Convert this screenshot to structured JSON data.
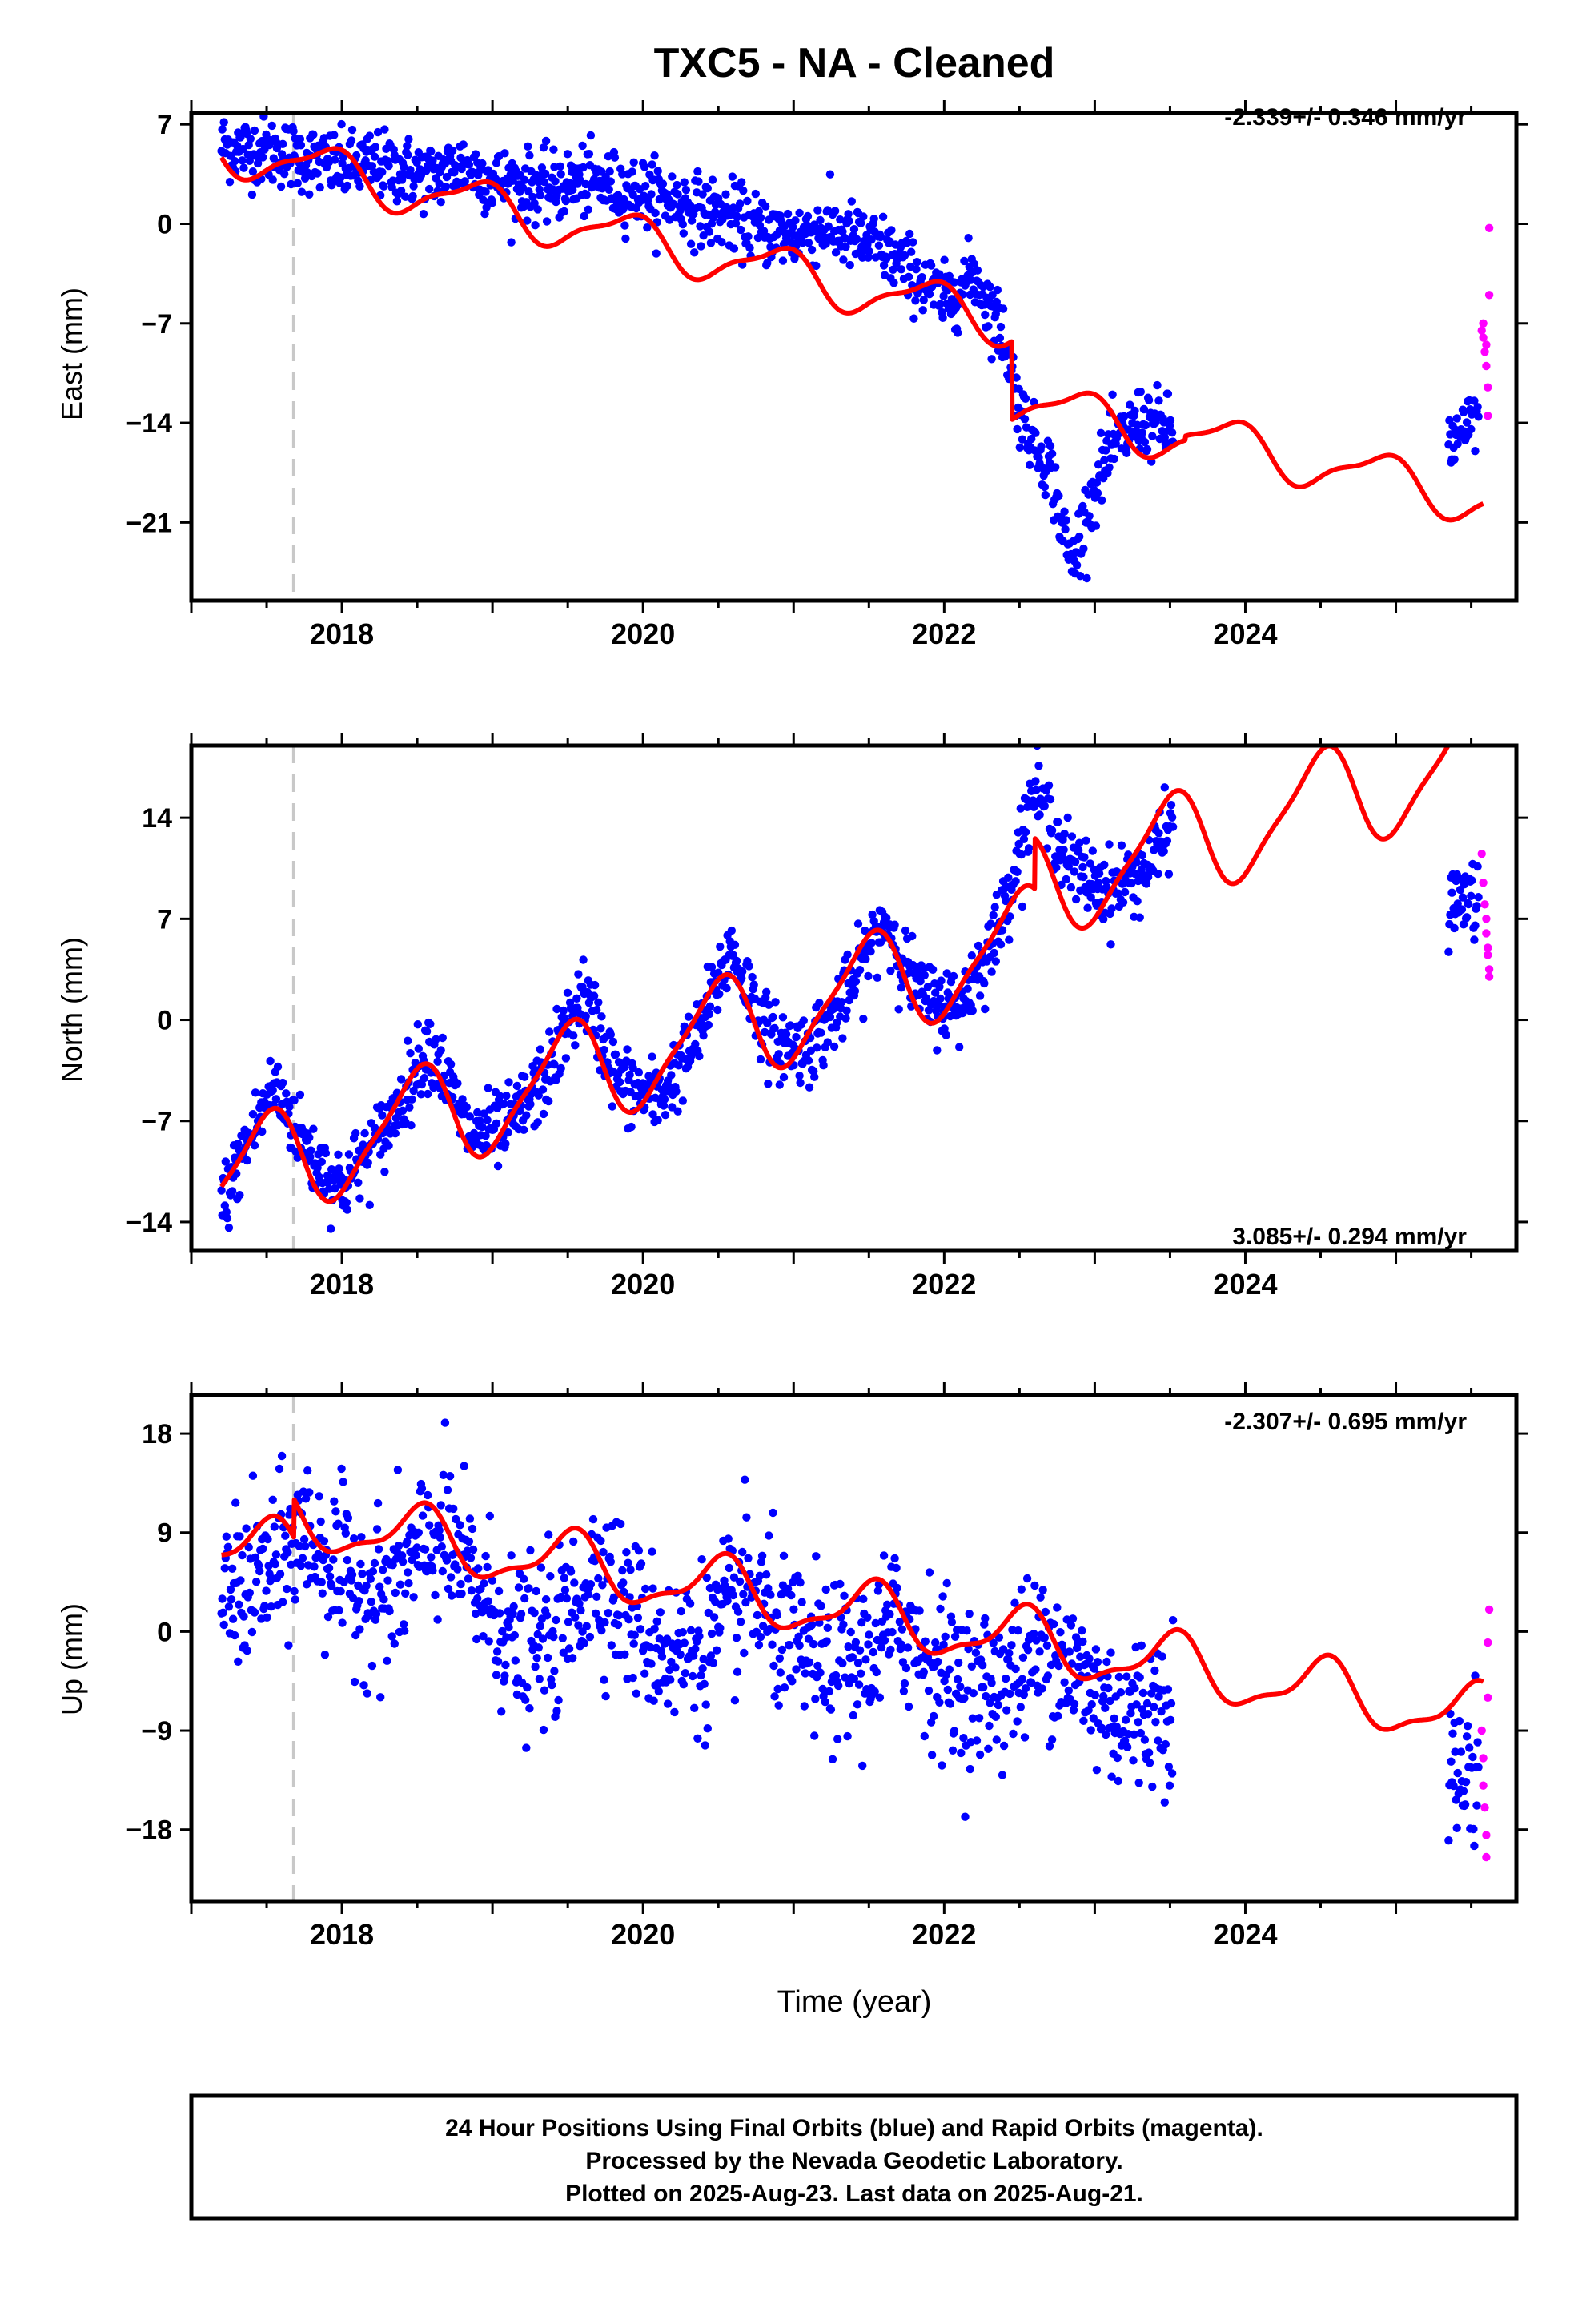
{
  "title": "TXC5  - NA - Cleaned",
  "footer": {
    "lines": [
      "24 Hour Positions Using Final Orbits (blue) and Rapid Orbits (magenta).",
      "Processed by the Nevada Geodetic Laboratory.",
      "Plotted on 2025-Aug-23. Last data on 2025-Aug-21."
    ]
  },
  "colors": {
    "final": "#0000ff",
    "rapid": "#ff00ff",
    "model": "#ff0000",
    "marker": "#c8c8c8"
  },
  "chart_data": [
    {
      "type": "scatter",
      "ylabel": "East (mm)",
      "xlabel": "",
      "rate": "-2.339+/- 0.346 mm/yr",
      "xlim": [
        2017.0,
        2025.8
      ],
      "ylim": [
        -26.5,
        7.8
      ],
      "yticks": [
        7,
        0,
        -7,
        -14,
        -21
      ],
      "yticklabels": [
        "7",
        "0",
        "−7",
        "−14",
        "−21"
      ],
      "xticks": [
        2018,
        2020,
        2022,
        2024
      ],
      "xticklabels": [
        "2018",
        "2020",
        "2022",
        "2024"
      ],
      "marker_line": 2017.68,
      "trend": {
        "t0": 2020.0,
        "offset": -1.2,
        "rate": -2.339,
        "offsets": [
          [
            2022.45,
            -5.5
          ],
          [
            2023.6,
            0.3
          ]
        ]
      },
      "seasonal": {
        "annual_amp": 1.6,
        "annual_phase": 2.2,
        "semi_amp": 0.5,
        "semi_phase": 1.0
      },
      "final_series": [
        [
          2017.2,
          5.5
        ],
        [
          2017.4,
          5.2
        ],
        [
          2017.6,
          5.0
        ],
        [
          2017.8,
          4.5
        ],
        [
          2018.0,
          4.0
        ],
        [
          2018.2,
          4.2
        ],
        [
          2018.4,
          3.8
        ],
        [
          2018.6,
          3.3
        ],
        [
          2018.8,
          4.2
        ],
        [
          2019.0,
          3.0
        ],
        [
          2019.2,
          2.8
        ],
        [
          2019.4,
          2.5
        ],
        [
          2019.6,
          3.0
        ],
        [
          2019.8,
          2.6
        ],
        [
          2020.0,
          2.2
        ],
        [
          2020.2,
          1.7
        ],
        [
          2020.4,
          0.9
        ],
        [
          2020.6,
          0.5
        ],
        [
          2020.8,
          -0.5
        ],
        [
          2021.0,
          -0.8
        ],
        [
          2021.2,
          -0.3
        ],
        [
          2021.4,
          -1.0
        ],
        [
          2021.6,
          -1.8
        ],
        [
          2021.8,
          -3.5
        ],
        [
          2022.0,
          -5.5
        ],
        [
          2022.2,
          -3.5
        ],
        [
          2022.4,
          -8.0
        ],
        [
          2022.5,
          -13.0
        ],
        [
          2022.6,
          -15.5
        ],
        [
          2022.7,
          -17.0
        ],
        [
          2022.8,
          -22.0
        ],
        [
          2022.85,
          -24.0
        ],
        [
          2022.95,
          -20.0
        ],
        [
          2023.1,
          -16.0
        ],
        [
          2023.3,
          -13.8
        ],
        [
          2023.52,
          -14.5
        ]
      ],
      "final_gap": [
        2023.55,
        2025.32
      ],
      "final_tail": [
        [
          2025.35,
          -15.5
        ],
        [
          2025.45,
          -15.0
        ],
        [
          2025.55,
          -13.0
        ]
      ],
      "scatter": 1.2,
      "rapid": [
        [
          2025.57,
          -7.5
        ],
        [
          2025.58,
          -8.0
        ],
        [
          2025.58,
          -7.0
        ],
        [
          2025.59,
          -9.0
        ],
        [
          2025.6,
          -8.5
        ],
        [
          2025.6,
          -10.0
        ],
        [
          2025.61,
          -11.5
        ],
        [
          2025.61,
          -13.5
        ],
        [
          2025.62,
          -5.0
        ],
        [
          2025.62,
          -0.3
        ]
      ]
    },
    {
      "type": "scatter",
      "ylabel": "North (mm)",
      "xlabel": "",
      "rate": "3.085+/- 0.294 mm/yr",
      "xlim": [
        2017.0,
        2025.8
      ],
      "ylim": [
        -16.0,
        19.0
      ],
      "yticks": [
        14,
        7,
        0,
        -7,
        -14
      ],
      "yticklabels": [
        "14",
        "7",
        "0",
        "−7",
        "−14"
      ],
      "xticks": [
        2018,
        2020,
        2022,
        2024
      ],
      "xticklabels": [
        "2018",
        "2020",
        "2022",
        "2024"
      ],
      "marker_line": 2017.68,
      "trend": {
        "t0": 2020.0,
        "offset": -2.4,
        "rate": 3.085,
        "offsets": [
          [
            2022.6,
            3.5
          ]
        ]
      },
      "seasonal": {
        "annual_amp": 3.5,
        "annual_phase": -1.5,
        "semi_amp": 0.8,
        "semi_phase": 0.2
      },
      "final_series": [
        [
          2017.2,
          -13.0
        ],
        [
          2017.35,
          -9.0
        ],
        [
          2017.55,
          -4.5
        ],
        [
          2017.8,
          -9.5
        ],
        [
          2018.0,
          -11.5
        ],
        [
          2018.3,
          -7.5
        ],
        [
          2018.58,
          -1.5
        ],
        [
          2018.85,
          -8.0
        ],
        [
          2019.1,
          -7.5
        ],
        [
          2019.35,
          -4.0
        ],
        [
          2019.6,
          2.0
        ],
        [
          2019.85,
          -4.5
        ],
        [
          2020.1,
          -5.5
        ],
        [
          2020.35,
          -1.5
        ],
        [
          2020.58,
          5.0
        ],
        [
          2020.85,
          -1.5
        ],
        [
          2021.1,
          -2.0
        ],
        [
          2021.35,
          1.5
        ],
        [
          2021.6,
          7.0
        ],
        [
          2021.85,
          1.5
        ],
        [
          2022.1,
          1.0
        ],
        [
          2022.35,
          6.0
        ],
        [
          2022.6,
          16.0
        ],
        [
          2022.85,
          10.5
        ],
        [
          2023.1,
          9.0
        ],
        [
          2023.35,
          10.5
        ],
        [
          2023.52,
          13.5
        ]
      ],
      "final_gap": [
        2023.55,
        2025.32
      ],
      "final_tail": [
        [
          2025.35,
          7.8
        ],
        [
          2025.45,
          8.5
        ],
        [
          2025.55,
          8.0
        ]
      ],
      "scatter": 1.3,
      "rapid": [
        [
          2025.57,
          11.5
        ],
        [
          2025.58,
          9.5
        ],
        [
          2025.59,
          8.0
        ],
        [
          2025.6,
          7.0
        ],
        [
          2025.6,
          6.0
        ],
        [
          2025.61,
          5.0
        ],
        [
          2025.61,
          4.5
        ],
        [
          2025.62,
          3.5
        ],
        [
          2025.62,
          3.0
        ]
      ]
    },
    {
      "type": "scatter",
      "ylabel": "Up (mm)",
      "xlabel": "Time (year)",
      "rate": "-2.307+/- 0.695 mm/yr",
      "xlim": [
        2017.0,
        2025.8
      ],
      "ylim": [
        -24.5,
        21.5
      ],
      "yticks": [
        18,
        9,
        0,
        -9,
        -18
      ],
      "yticklabels": [
        "18",
        "9",
        "0",
        "−9",
        "−18"
      ],
      "xticks": [
        2018,
        2020,
        2022,
        2024
      ],
      "xticklabels": [
        "2018",
        "2020",
        "2022",
        "2024"
      ],
      "marker_line": 2017.68,
      "trend": {
        "t0": 2020.0,
        "offset": 1.5,
        "rate": -2.307,
        "offsets": [
          [
            2017.68,
            3.5
          ]
        ]
      },
      "seasonal": {
        "annual_amp": 2.6,
        "annual_phase": -1.7,
        "semi_amp": 0.9,
        "semi_phase": 0.5
      },
      "final_series": [
        [
          2017.2,
          3.0
        ],
        [
          2017.5,
          5.0
        ],
        [
          2017.75,
          9.0
        ],
        [
          2018.0,
          5.0
        ],
        [
          2018.3,
          3.0
        ],
        [
          2018.65,
          9.0
        ],
        [
          2018.9,
          4.0
        ],
        [
          2019.2,
          -2.0
        ],
        [
          2019.45,
          0.0
        ],
        [
          2019.7,
          6.0
        ],
        [
          2019.95,
          1.0
        ],
        [
          2020.2,
          -2.0
        ],
        [
          2020.45,
          -1.0
        ],
        [
          2020.7,
          4.0
        ],
        [
          2020.95,
          -1.0
        ],
        [
          2021.2,
          -3.0
        ],
        [
          2021.45,
          -3.0
        ],
        [
          2021.7,
          1.0
        ],
        [
          2021.95,
          -3.0
        ],
        [
          2022.2,
          -5.5
        ],
        [
          2022.45,
          -4.0
        ],
        [
          2022.7,
          -1.0
        ],
        [
          2022.95,
          -5.0
        ],
        [
          2023.2,
          -8.0
        ],
        [
          2023.52,
          -6.0
        ]
      ],
      "final_gap": [
        2023.55,
        2025.32
      ],
      "final_tail": [
        [
          2025.35,
          -12.5
        ],
        [
          2025.45,
          -14.0
        ],
        [
          2025.55,
          -11.0
        ]
      ],
      "scatter": 3.6,
      "rapid": [
        [
          2025.57,
          -9.0
        ],
        [
          2025.58,
          -11.5
        ],
        [
          2025.58,
          -14.0
        ],
        [
          2025.59,
          -16.0
        ],
        [
          2025.6,
          -18.5
        ],
        [
          2025.6,
          -20.5
        ],
        [
          2025.61,
          -6.0
        ],
        [
          2025.61,
          -1.0
        ],
        [
          2025.62,
          2.0
        ]
      ]
    }
  ]
}
